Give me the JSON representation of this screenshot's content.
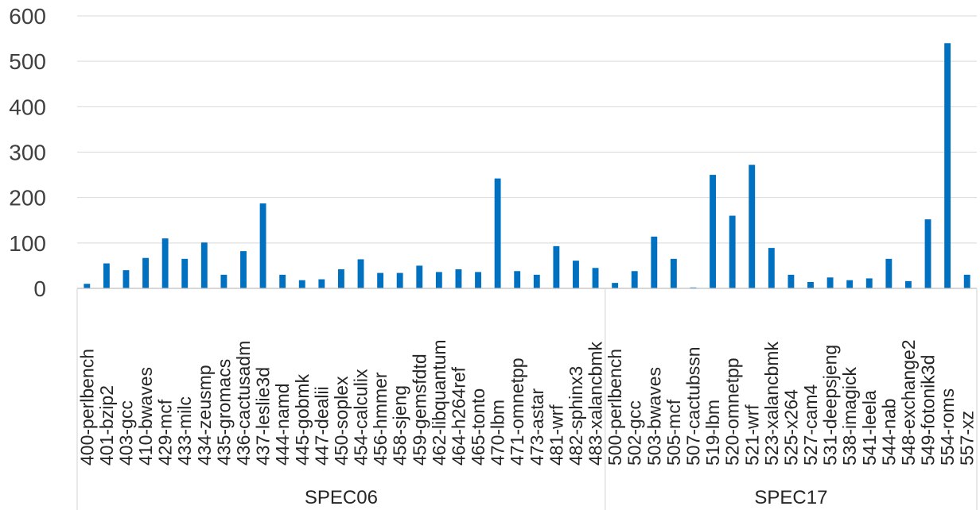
{
  "chart_data": {
    "type": "bar",
    "title": "",
    "xlabel": "",
    "ylabel": "",
    "ylim": [
      0,
      600
    ],
    "yticks": [
      0,
      100,
      200,
      300,
      400,
      500,
      600
    ],
    "grid": true,
    "legend": "none",
    "bar_color": "#0070c0",
    "groups": [
      {
        "label": "SPEC06",
        "categories": [
          "400-perlbench",
          "401-bzip2",
          "403-gcc",
          "410-bwaves",
          "429-mcf",
          "433-milc",
          "434-zeusmp",
          "435-gromacs",
          "436-cactusadm",
          "437-leslie3d",
          "444-namd",
          "445-gobmk",
          "447-dealii",
          "450-soplex",
          "454-calculix",
          "456-hmmer",
          "458-sjeng",
          "459-gemsfdtd",
          "462-libquantum",
          "464-h264ref",
          "465-tonto",
          "470-lbm",
          "471-omnetpp",
          "473-astar",
          "481-wrf",
          "482-sphinx3",
          "483-xalancbmk"
        ],
        "values": [
          10,
          55,
          40,
          67,
          110,
          65,
          101,
          30,
          82,
          187,
          30,
          18,
          20,
          42,
          64,
          34,
          34,
          50,
          36,
          42,
          36,
          242,
          38,
          30,
          93,
          61,
          45
        ]
      },
      {
        "label": "SPEC17",
        "categories": [
          "500-perlbench",
          "502-gcc",
          "503-bwaves",
          "505-mcf",
          "507-cactubssn",
          "519-lbm",
          "520-omnetpp",
          "521-wrf",
          "523-xalancbmk",
          "525-x264",
          "527-cam4",
          "531-deepsjeng",
          "538-imagick",
          "541-leela",
          "544-nab",
          "548-exchange2",
          "549-fotonik3d",
          "554-roms",
          "557-xz"
        ],
        "values": [
          12,
          38,
          114,
          65,
          2,
          250,
          160,
          272,
          89,
          30,
          14,
          24,
          18,
          22,
          65,
          16,
          152,
          540,
          30
        ]
      }
    ]
  }
}
